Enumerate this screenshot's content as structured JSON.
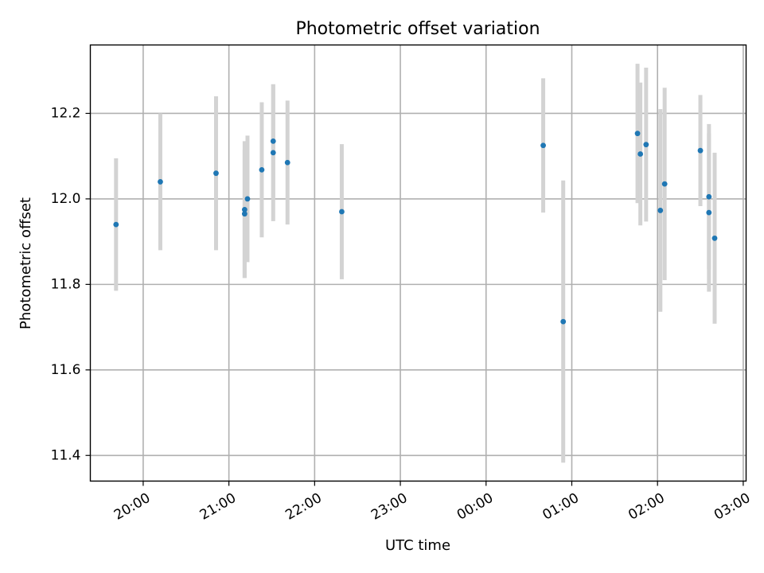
{
  "chart_data": {
    "type": "scatter",
    "title": "Photometric offset variation",
    "xlabel": "UTC time",
    "ylabel": "Photometric offset",
    "x_tick_labels": [
      "20:00",
      "21:00",
      "22:00",
      "23:00",
      "00:00",
      "01:00",
      "02:00",
      "03:00"
    ],
    "y_ticks": [
      11.4,
      11.6,
      11.8,
      12.0,
      12.2
    ],
    "y_tick_labels": [
      "11.4",
      "11.6",
      "11.8",
      "12.0",
      "12.2"
    ],
    "xlim": [
      "19:23",
      "03:02"
    ],
    "ylim": [
      11.34,
      12.36
    ],
    "grid": true,
    "colors": {
      "points": "#1f77b4",
      "errorbars": "#d3d3d3"
    },
    "series": [
      {
        "points": [
          {
            "x": "19:41",
            "y": 11.94,
            "yerr": 0.155
          },
          {
            "x": "20:12",
            "y": 12.04,
            "yerr": 0.16
          },
          {
            "x": "20:51",
            "y": 12.06,
            "yerr": 0.18
          },
          {
            "x": "21:11",
            "y": 11.965,
            "yerr": 0.15
          },
          {
            "x": "21:11",
            "y": 11.975,
            "yerr": 0.16
          },
          {
            "x": "21:13",
            "y": 12.0,
            "yerr": 0.148
          },
          {
            "x": "21:23",
            "y": 12.068,
            "yerr": 0.158
          },
          {
            "x": "21:31",
            "y": 12.135,
            "yerr": 0.133
          },
          {
            "x": "21:31",
            "y": 12.108,
            "yerr": 0.16
          },
          {
            "x": "21:41",
            "y": 12.085,
            "yerr": 0.145
          },
          {
            "x": "22:19",
            "y": 11.97,
            "yerr": 0.158
          },
          {
            "x": "00:40",
            "y": 12.125,
            "yerr": 0.157
          },
          {
            "x": "00:54",
            "y": 11.713,
            "yerr": 0.33
          },
          {
            "x": "01:46",
            "y": 12.153,
            "yerr": 0.163
          },
          {
            "x": "01:48",
            "y": 12.105,
            "yerr": 0.167
          },
          {
            "x": "01:52",
            "y": 12.127,
            "yerr": 0.18
          },
          {
            "x": "02:02",
            "y": 11.973,
            "yerr": 0.237
          },
          {
            "x": "02:05",
            "y": 12.035,
            "yerr": 0.225
          },
          {
            "x": "02:30",
            "y": 12.113,
            "yerr": 0.13
          },
          {
            "x": "02:36",
            "y": 12.005,
            "yerr": 0.17
          },
          {
            "x": "02:36",
            "y": 11.968,
            "yerr": 0.185
          },
          {
            "x": "02:40",
            "y": 11.908,
            "yerr": 0.2
          }
        ]
      }
    ]
  }
}
